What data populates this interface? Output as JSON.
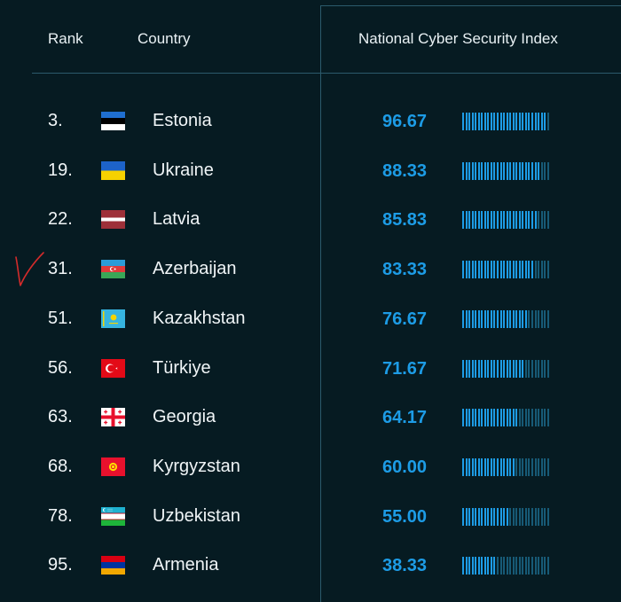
{
  "header": {
    "rank_label": "Rank",
    "country_label": "Country",
    "index_label": "National Cyber Security Index"
  },
  "colors": {
    "background": "#061b22",
    "accent": "#1d9ce6",
    "bar_inactive": "#175a76",
    "divider": "#2b5a6c",
    "annotation": "#d32b2b"
  },
  "rows": [
    {
      "rank": "3.",
      "country": "Estonia",
      "score": "96.67",
      "fill": 0.9667,
      "flag": "flag-estonia"
    },
    {
      "rank": "19.",
      "country": "Ukraine",
      "score": "88.33",
      "fill": 0.8833,
      "flag": "flag-ukraine"
    },
    {
      "rank": "22.",
      "country": "Latvia",
      "score": "85.83",
      "fill": 0.8583,
      "flag": "flag-latvia"
    },
    {
      "rank": "31.",
      "country": "Azerbaijan",
      "score": "83.33",
      "fill": 0.8333,
      "flag": "flag-azerbaijan"
    },
    {
      "rank": "51.",
      "country": "Kazakhstan",
      "score": "76.67",
      "fill": 0.7667,
      "flag": "flag-kazakhstan"
    },
    {
      "rank": "56.",
      "country": "Türkiye",
      "score": "71.67",
      "fill": 0.7167,
      "flag": "flag-turkiye"
    },
    {
      "rank": "63.",
      "country": "Georgia",
      "score": "64.17",
      "fill": 0.6417,
      "flag": "flag-georgia"
    },
    {
      "rank": "68.",
      "country": "Kyrgyzstan",
      "score": "60.00",
      "fill": 0.6,
      "flag": "flag-kyrgyzstan"
    },
    {
      "rank": "78.",
      "country": "Uzbekistan",
      "score": "55.00",
      "fill": 0.55,
      "flag": "flag-uzbekistan"
    },
    {
      "rank": "95.",
      "country": "Armenia",
      "score": "38.33",
      "fill": 0.3833,
      "flag": "flag-armenia"
    }
  ],
  "annotation": {
    "icon": "handwritten-checkmark-icon",
    "row_country": "Azerbaijan"
  }
}
